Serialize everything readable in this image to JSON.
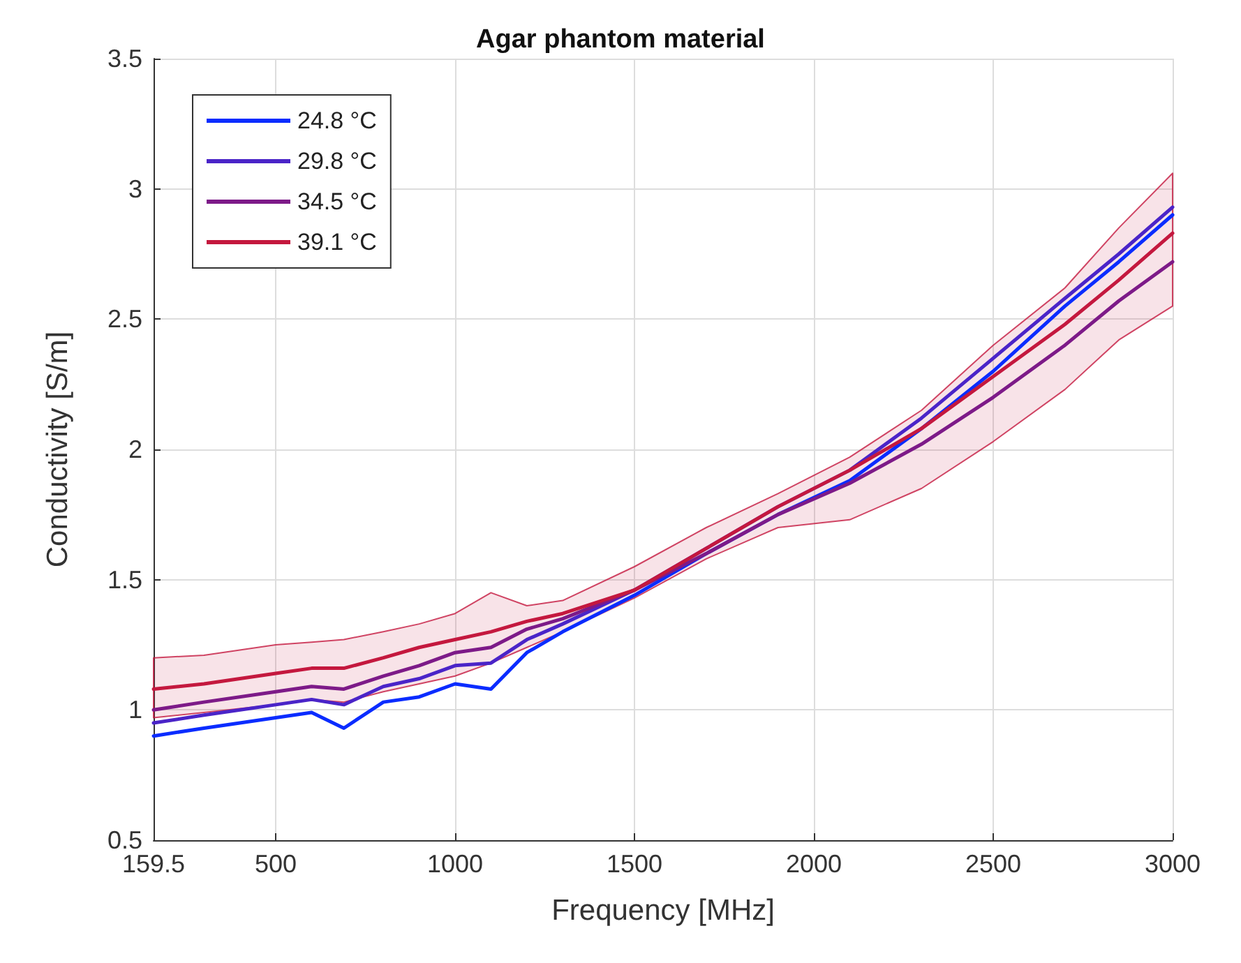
{
  "chart_data": {
    "type": "line",
    "title": "Agar phantom material",
    "xlabel": "Frequency [MHz]",
    "ylabel": "Conductivity [S/m]",
    "x": [
      159.5,
      300,
      500,
      600,
      690,
      800,
      900,
      1000,
      1100,
      1200,
      1300,
      1500,
      1700,
      1900,
      2100,
      2300,
      2500,
      2700,
      2850,
      3000
    ],
    "series": [
      {
        "name": "24.8 °C",
        "color": "#0a2cff",
        "values": [
          0.9,
          0.93,
          0.97,
          0.99,
          0.93,
          1.03,
          1.05,
          1.1,
          1.08,
          1.22,
          1.3,
          1.44,
          1.6,
          1.75,
          1.88,
          2.08,
          2.3,
          2.55,
          2.72,
          2.9
        ]
      },
      {
        "name": "29.8 °C",
        "color": "#4a24c8",
        "values": [
          0.95,
          0.98,
          1.02,
          1.04,
          1.02,
          1.09,
          1.12,
          1.17,
          1.18,
          1.27,
          1.33,
          1.46,
          1.62,
          1.78,
          1.92,
          2.12,
          2.35,
          2.58,
          2.75,
          2.93
        ]
      },
      {
        "name": "34.5 °C",
        "color": "#7d1a88",
        "values": [
          1.0,
          1.03,
          1.07,
          1.09,
          1.08,
          1.13,
          1.17,
          1.22,
          1.24,
          1.31,
          1.35,
          1.46,
          1.6,
          1.75,
          1.87,
          2.02,
          2.2,
          2.4,
          2.57,
          2.72
        ]
      },
      {
        "name": "39.1 °C",
        "color": "#c4183e",
        "values": [
          1.08,
          1.1,
          1.14,
          1.16,
          1.16,
          1.2,
          1.24,
          1.27,
          1.3,
          1.34,
          1.37,
          1.46,
          1.62,
          1.78,
          1.92,
          2.08,
          2.28,
          2.48,
          2.65,
          2.83
        ],
        "lower": [
          0.97,
          0.99,
          1.02,
          1.04,
          1.03,
          1.07,
          1.1,
          1.13,
          1.18,
          1.24,
          1.3,
          1.43,
          1.58,
          1.7,
          1.73,
          1.85,
          2.03,
          2.23,
          2.42,
          2.55
        ],
        "upper": [
          1.2,
          1.21,
          1.25,
          1.26,
          1.27,
          1.3,
          1.33,
          1.37,
          1.45,
          1.4,
          1.42,
          1.55,
          1.7,
          1.83,
          1.97,
          2.15,
          2.4,
          2.62,
          2.85,
          3.06
        ]
      }
    ],
    "xlim": [
      159.5,
      3000
    ],
    "xticks": [
      159.5,
      500,
      1000,
      1500,
      2000,
      2500,
      3000
    ],
    "ylim": [
      0.5,
      3.5
    ],
    "yticks": [
      0.5,
      1,
      1.5,
      2,
      2.5,
      3,
      3.5
    ],
    "grid": true,
    "legend": "top left"
  }
}
